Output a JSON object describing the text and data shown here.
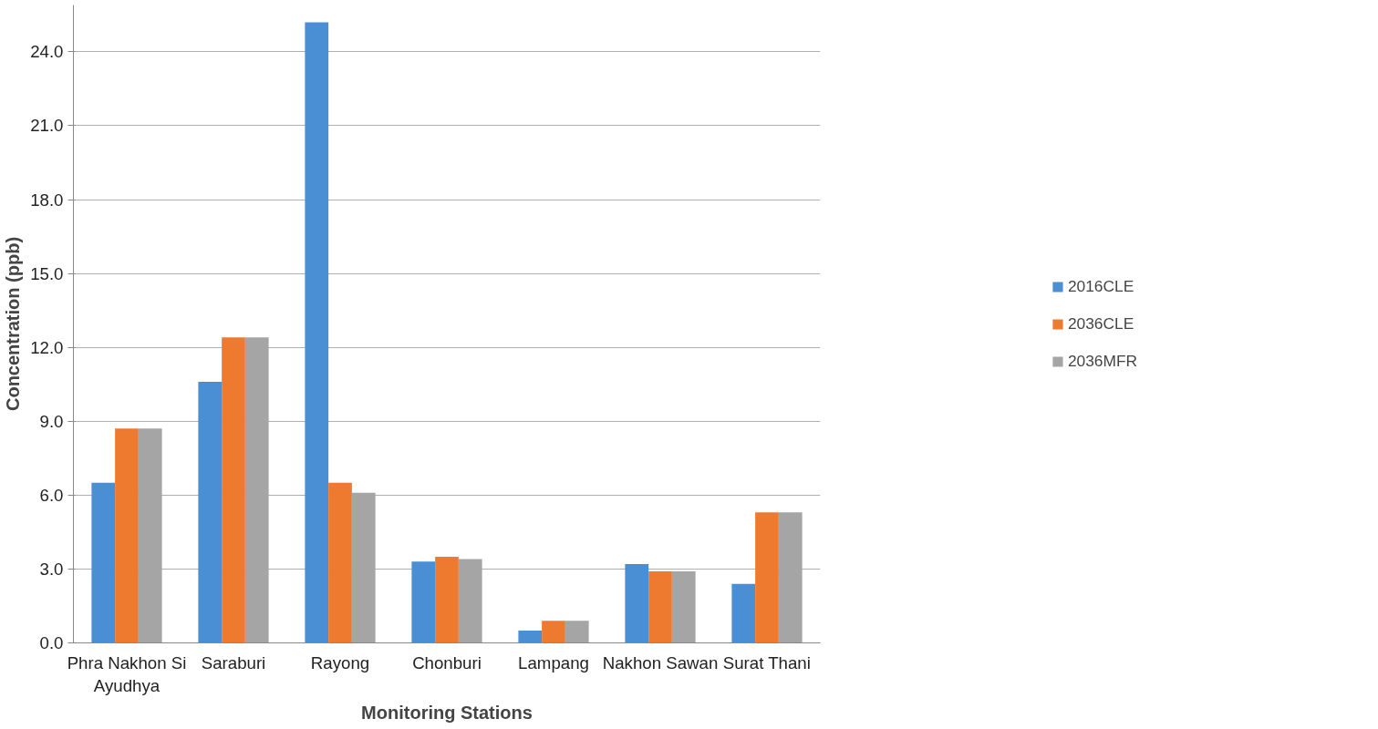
{
  "chart_data": {
    "type": "bar",
    "xlabel": "Monitoring Stations",
    "ylabel": "Concentration (ppb)",
    "categories": [
      "Phra Nakhon Si Ayudhya",
      "Saraburi",
      "Rayong",
      "Chonburi",
      "Lampang",
      "Nakhon Sawan",
      "Surat Thani"
    ],
    "series": [
      {
        "name": "2016CLE",
        "color": "#4a8fd4",
        "values": [
          6.5,
          10.6,
          25.2,
          3.3,
          0.5,
          3.2,
          2.4
        ]
      },
      {
        "name": "2036CLE",
        "color": "#ee7a30",
        "values": [
          8.7,
          12.4,
          6.5,
          3.5,
          0.9,
          2.9,
          5.3
        ]
      },
      {
        "name": "2036MFR",
        "color": "#a5a5a5",
        "values": [
          8.7,
          12.4,
          6.1,
          3.4,
          0.9,
          2.9,
          5.3
        ]
      }
    ],
    "ylim": [
      0,
      25.9
    ],
    "yticks": [
      {
        "value": 0,
        "label": "0.0"
      },
      {
        "value": 3,
        "label": "3.0"
      },
      {
        "value": 6,
        "label": "6.0"
      },
      {
        "value": 9,
        "label": "9.0"
      },
      {
        "value": 12,
        "label": "12.0"
      },
      {
        "value": 15,
        "label": "15.0"
      },
      {
        "value": 18,
        "label": "18.0"
      },
      {
        "value": 21,
        "label": "21.0"
      },
      {
        "value": 24,
        "label": "24.0"
      }
    ],
    "grid": "y",
    "legend": "right"
  }
}
